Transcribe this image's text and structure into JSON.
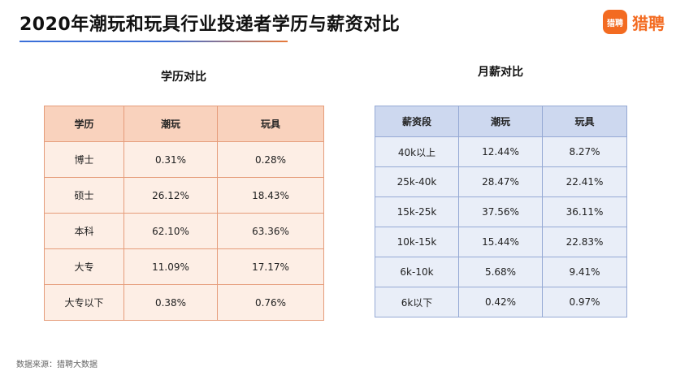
{
  "header": {
    "title": "2020年潮玩和玩具行业投递者学历与薪资对比",
    "logo_badge": "猎聘",
    "logo_text": "猎聘",
    "brand_color": "#f36b21"
  },
  "education": {
    "title": "学历对比",
    "headers": [
      "学历",
      "潮玩",
      "玩具"
    ],
    "rows": [
      [
        "博士",
        "0.31%",
        "0.28%"
      ],
      [
        "硕士",
        "26.12%",
        "18.43%"
      ],
      [
        "本科",
        "62.10%",
        "63.36%"
      ],
      [
        "大专",
        "11.09%",
        "17.17%"
      ],
      [
        "大专以下",
        "0.38%",
        "0.76%"
      ]
    ],
    "accent": "#f9d2bd"
  },
  "salary": {
    "title": "月薪对比",
    "headers": [
      "薪资段",
      "潮玩",
      "玩具"
    ],
    "rows": [
      [
        "40k以上",
        "12.44%",
        "8.27%"
      ],
      [
        "25k-40k",
        "28.47%",
        "22.41%"
      ],
      [
        "15k-25k",
        "37.56%",
        "36.11%"
      ],
      [
        "10k-15k",
        "15.44%",
        "22.83%"
      ],
      [
        "6k-10k",
        "5.68%",
        "9.41%"
      ],
      [
        "6k以下",
        "0.42%",
        "0.97%"
      ]
    ],
    "accent": "#cdd8ef"
  },
  "footer": {
    "source": "数据来源：猎聘大数据"
  }
}
